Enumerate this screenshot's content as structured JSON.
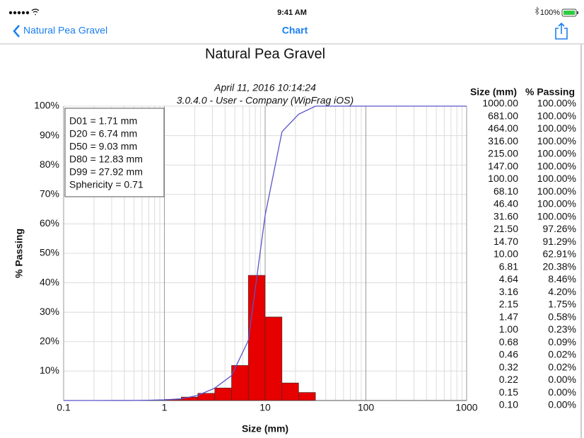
{
  "status_bar": {
    "time": "9:41 AM",
    "battery": "100%"
  },
  "nav_bar": {
    "back": "Natural Pea Gravel",
    "title": "Chart"
  },
  "chart_data": {
    "type": "histogram",
    "title": "Natural Pea Gravel",
    "subtitle": [
      "April 11, 2016 10:14:24",
      "3.0.4.0  -  User - Company (WipFrag iOS)"
    ],
    "xlabel": "Size (mm)",
    "ylabel": "% Passing",
    "xscale": "log",
    "xlim": [
      0.1,
      1000
    ],
    "ylim": [
      0,
      100
    ],
    "xticks": [
      0.1,
      1,
      10,
      100,
      1000
    ],
    "yticks": [
      {
        "value": 10,
        "label": "10%"
      },
      {
        "value": 20,
        "label": "20%"
      },
      {
        "value": 30,
        "label": "30%"
      },
      {
        "value": 40,
        "label": "40%"
      },
      {
        "value": 50,
        "label": "50%"
      },
      {
        "value": 60,
        "label": "60%"
      },
      {
        "value": 70,
        "label": "70%"
      },
      {
        "value": 80,
        "label": "80%"
      },
      {
        "value": 90,
        "label": "90%"
      },
      {
        "value": 100,
        "label": "100%"
      }
    ],
    "grid": true,
    "color": "#e60000",
    "bins": [
      0.68,
      1.0,
      1.47,
      2.15,
      3.16,
      4.64,
      6.81,
      10.0,
      14.7,
      21.5,
      31.6
    ],
    "counts": [
      0.14,
      0.35,
      1.17,
      2.45,
      4.26,
      11.92,
      42.53,
      28.38,
      5.97,
      2.74
    ],
    "stats": [
      "D01 = 1.71 mm",
      "D20 = 6.74 mm",
      "D50 = 9.03 mm",
      "D80 = 12.83 mm",
      "D99 = 27.92 mm",
      "Sphericity = 0.71"
    ],
    "curve": {
      "type": "line",
      "color": "#5a55c8",
      "table_header": [
        "Size (mm)",
        "% Passing"
      ],
      "x": [
        1000,
        681,
        464,
        316,
        215,
        147,
        100,
        68.1,
        46.4,
        31.6,
        21.5,
        14.7,
        10,
        6.81,
        4.64,
        3.16,
        2.15,
        1.47,
        1,
        0.68,
        0.46,
        0.32,
        0.22,
        0.15,
        0.1
      ],
      "x_labels": [
        "1000.00",
        "681.00",
        "464.00",
        "316.00",
        "215.00",
        "147.00",
        "100.00",
        "68.10",
        "46.40",
        "31.60",
        "21.50",
        "14.70",
        "10.00",
        "6.81",
        "4.64",
        "3.16",
        "2.15",
        "1.47",
        "1.00",
        "0.68",
        "0.46",
        "0.32",
        "0.22",
        "0.15",
        "0.10"
      ],
      "values": [
        100,
        100,
        100,
        100,
        100,
        100,
        100,
        100,
        100,
        100,
        97.26,
        91.29,
        62.91,
        20.38,
        8.46,
        4.2,
        1.75,
        0.58,
        0.23,
        0.09,
        0.02,
        0.02,
        0,
        0,
        0
      ],
      "value_labels": [
        "100.00%",
        "100.00%",
        "100.00%",
        "100.00%",
        "100.00%",
        "100.00%",
        "100.00%",
        "100.00%",
        "100.00%",
        "100.00%",
        "97.26%",
        "91.29%",
        "62.91%",
        "20.38%",
        "8.46%",
        "4.20%",
        "1.75%",
        "0.58%",
        "0.23%",
        "0.09%",
        "0.02%",
        "0.02%",
        "0.00%",
        "0.00%",
        "0.00%"
      ]
    }
  }
}
